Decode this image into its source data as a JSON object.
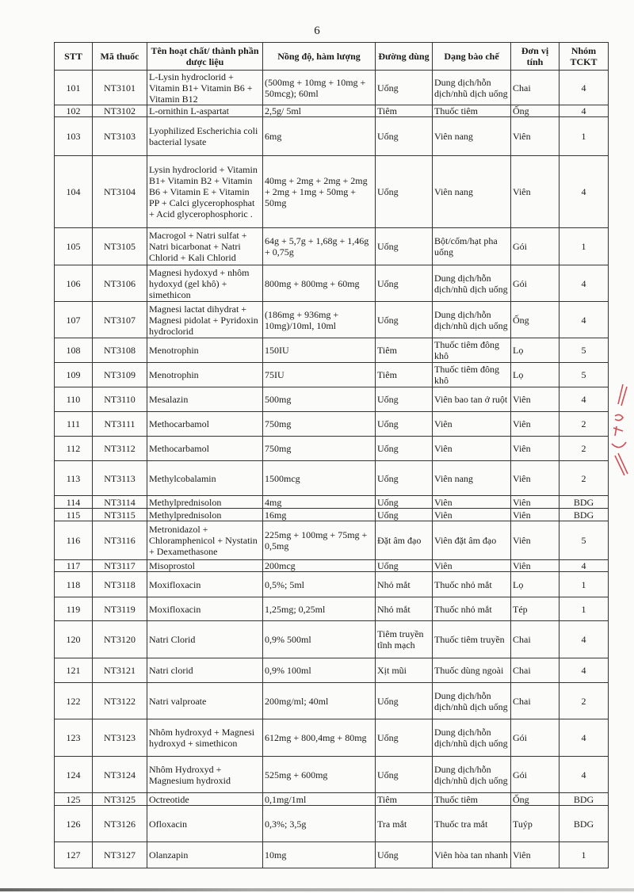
{
  "page_number": "6",
  "table": {
    "headers": [
      "STT",
      "Mã thuốc",
      "Tên hoạt chất/ thành phần dược liệu",
      "Nồng độ, hàm lượng",
      "Đường dùng",
      "Dạng bào chế",
      "Đơn vị tính",
      "Nhóm TCKT"
    ],
    "rows": [
      [
        "101",
        "NT3101",
        "L-Lysin hydroclorid + Vitamin B1+ Vitamin B6 + Vitamin B12",
        "(500mg + 10mg + 10mg + 50mcg); 60ml",
        "Uống",
        "Dung dịch/hỗn dịch/nhũ dịch uống",
        "Chai",
        "4"
      ],
      [
        "102",
        "NT3102",
        "L-ornithin L-aspartat",
        "2,5g/ 5ml",
        "Tiêm",
        "Thuốc tiêm",
        "Ống",
        "4"
      ],
      [
        "103",
        "NT3103",
        "Lyophilized Escherichia coli bacterial lysate",
        "6mg",
        "Uống",
        "Viên nang",
        "Viên",
        "1"
      ],
      [
        "104",
        "NT3104",
        "Lysin hydroclorid + Vitamin B1+ Vitamin B2 + Vitamin B6 + Vitamin E + Vitamin PP + Calci glycerophosphat + Acid glycerophosphoric .",
        "40mg + 2mg + 2mg + 2mg + 2mg + 1mg + 50mg + 50mg",
        "Uống",
        "Viên nang",
        "Viên",
        "4"
      ],
      [
        "105",
        "NT3105",
        "Macrogol + Natri sulfat + Natri bicarbonat + Natri Chlorid + Kali Chlorid",
        "64g + 5,7g + 1,68g + 1,46g + 0,75g",
        "Uống",
        "Bột/cốm/hạt pha uống",
        "Gói",
        "1"
      ],
      [
        "106",
        "NT3106",
        "Magnesi hydoxyd + nhôm hydoxyd (gel khô) + simethicon",
        "800mg + 800mg + 60mg",
        "Uống",
        "Dung dịch/hỗn dịch/nhũ dịch uống",
        "Gói",
        "4"
      ],
      [
        "107",
        "NT3107",
        "Magnesi lactat dihydrat + Magnesi pidolat + Pyridoxin hydroclorid",
        "(186mg + 936mg + 10mg)/10ml, 10ml",
        "Uống",
        "Dung dịch/hỗn dịch/nhũ dịch uống",
        "Ống",
        "4"
      ],
      [
        "108",
        "NT3108",
        "Menotrophin",
        "150IU",
        "Tiêm",
        "Thuốc tiêm đông khô",
        "Lọ",
        "5"
      ],
      [
        "109",
        "NT3109",
        "Menotrophin",
        "75IU",
        "Tiêm",
        "Thuốc tiêm đông khô",
        "Lọ",
        "5"
      ],
      [
        "110",
        "NT3110",
        "Mesalazin",
        "500mg",
        "Uống",
        "Viên bao tan ở ruột",
        "Viên",
        "4"
      ],
      [
        "111",
        "NT3111",
        "Methocarbamol",
        "750mg",
        "Uống",
        "Viên",
        "Viên",
        "2"
      ],
      [
        "112",
        "NT3112",
        "Methocarbamol",
        "750mg",
        "Uống",
        "Viên",
        "Viên",
        "2"
      ],
      [
        "113",
        "NT3113",
        "Methylcobalamin",
        "1500mcg",
        "Uống",
        "Viên nang",
        "Viên",
        "2"
      ],
      [
        "114",
        "NT3114",
        "Methylprednisolon",
        "4mg",
        "Uống",
        "Viên",
        "Viên",
        "BDG"
      ],
      [
        "115",
        "NT3115",
        "Methylprednisolon",
        "16mg",
        "Uống",
        "Viên",
        "Viên",
        "BDG"
      ],
      [
        "116",
        "NT3116",
        "Metronidazol + Chloramphenicol + Nystatin + Dexamethasone",
        "225mg + 100mg + 75mg + 0,5mg",
        "Đặt âm đạo",
        "Viên đặt âm đạo",
        "Viên",
        "5"
      ],
      [
        "117",
        "NT3117",
        "Misoprostol",
        "200mcg",
        "Uống",
        "Viên",
        "Viên",
        "4"
      ],
      [
        "118",
        "NT3118",
        "Moxifloxacin",
        "0,5%; 5ml",
        "Nhỏ mắt",
        "Thuốc nhỏ mắt",
        "Lọ",
        "1"
      ],
      [
        "119",
        "NT3119",
        "Moxifloxacin",
        "1,25mg; 0,25ml",
        "Nhỏ mắt",
        "Thuốc nhỏ mắt",
        "Tép",
        "1"
      ],
      [
        "120",
        "NT3120",
        "Natri Clorid",
        "0,9% 500ml",
        "Tiêm truyền tĩnh mạch",
        "Thuốc tiêm truyền",
        "Chai",
        "4"
      ],
      [
        "121",
        "NT3121",
        "Natri clorid",
        "0,9% 100ml",
        "Xịt mũi",
        "Thuốc dùng ngoài",
        "Chai",
        "4"
      ],
      [
        "122",
        "NT3122",
        "Natri valproate",
        "200mg/ml; 40ml",
        "Uống",
        "Dung dịch/hỗn dịch/nhũ dịch uống",
        "Chai",
        "2"
      ],
      [
        "123",
        "NT3123",
        "Nhôm hydroxyd + Magnesi hydroxyd + simethicon",
        "612mg + 800,4mg + 80mg",
        "Uống",
        "Dung dịch/hỗn dịch/nhũ dịch uống",
        "Gói",
        "4"
      ],
      [
        "124",
        "NT3124",
        "Nhôm Hydroxyd + Magnesium hydroxid",
        "525mg + 600mg",
        "Uống",
        "Dung dịch/hỗn dịch/nhũ dịch uống",
        "Gói",
        "4"
      ],
      [
        "125",
        "NT3125",
        "Octreotide",
        "0,1mg/1ml",
        "Tiêm",
        "Thuốc tiêm",
        "Ống",
        "BDG"
      ],
      [
        "126",
        "NT3126",
        "Ofloxacin",
        "0,3%; 3,5g",
        "Tra mắt",
        "Thuốc tra mắt",
        "Tuýp",
        "BDG"
      ],
      [
        "127",
        "NT3127",
        "Olanzapin",
        "10mg",
        "Uống",
        "Viên hòa tan nhanh",
        "Viên",
        "1"
      ]
    ]
  },
  "colors": {
    "stamp": "#c8323a",
    "ink": "#1a1a1a"
  }
}
